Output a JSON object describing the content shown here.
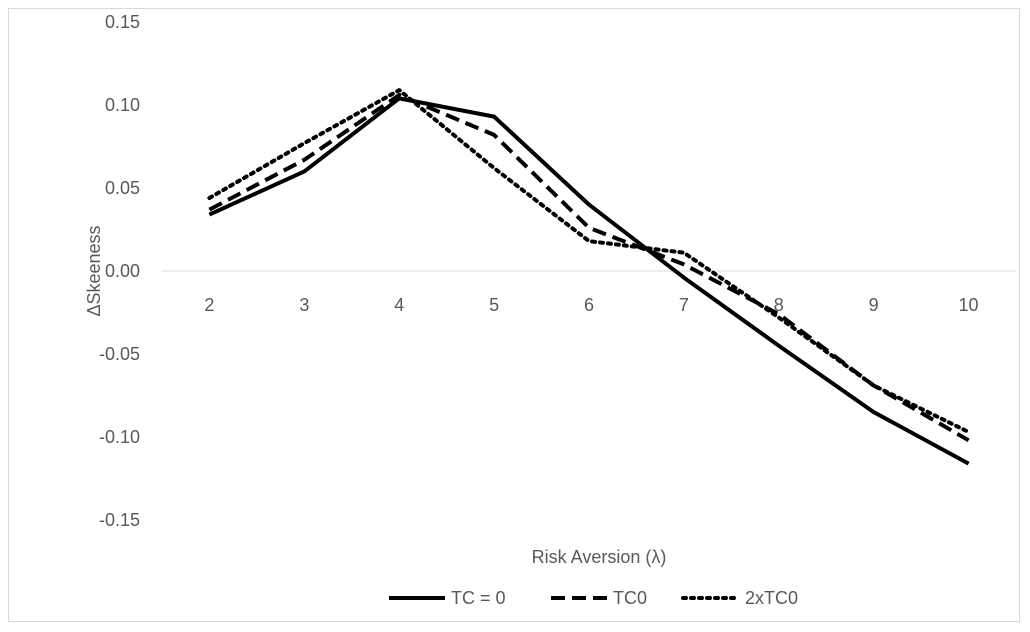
{
  "chart_data": {
    "type": "line",
    "title": "",
    "xlabel": "Risk Aversion (λ)",
    "ylabel": "ΔSkeeness",
    "categories": [
      "2",
      "3",
      "4",
      "5",
      "6",
      "7",
      "8",
      "9",
      "10"
    ],
    "ylim": [
      -0.15,
      0.15
    ],
    "yticks": [
      "-0.15",
      "-0.10",
      "-0.05",
      "0.00",
      "0.05",
      "0.10",
      "0.15"
    ],
    "grid": false,
    "legend_position": "bottom",
    "series": [
      {
        "name": "TC = 0",
        "style": "solid",
        "color": "#000000",
        "values": [
          0.034,
          0.06,
          0.104,
          0.093,
          0.04,
          -0.004,
          -0.045,
          -0.085,
          -0.116
        ]
      },
      {
        "name": "TC0",
        "style": "dashed",
        "color": "#000000",
        "values": [
          0.037,
          0.067,
          0.106,
          0.082,
          0.026,
          0.004,
          -0.026,
          -0.069,
          -0.102
        ]
      },
      {
        "name": "2xTC0",
        "style": "dotted",
        "color": "#000000",
        "values": [
          0.044,
          0.077,
          0.109,
          0.062,
          0.018,
          0.011,
          -0.028,
          -0.069,
          -0.097
        ]
      }
    ]
  }
}
